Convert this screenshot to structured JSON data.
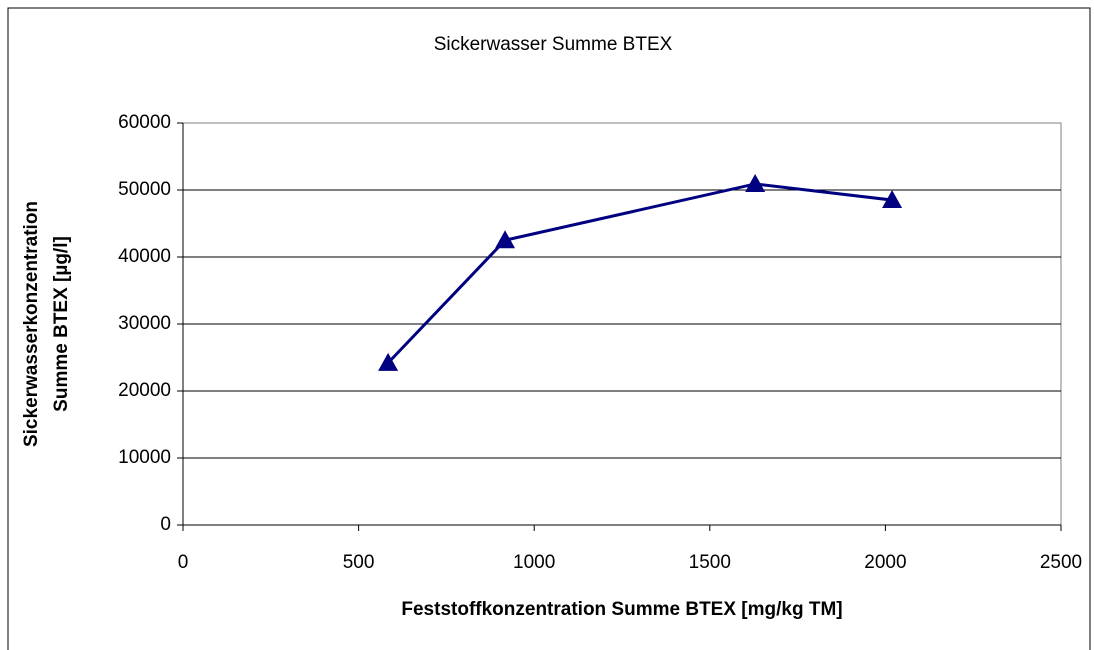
{
  "chart_data": {
    "type": "line",
    "title": "Sickerwasser Summe BTEX",
    "xlabel": "Feststoffkonzentration Summe BTEX [mg/kg TM]",
    "ylabel": [
      "Sickerwasserkonzentration",
      "Summe BTEX [µg/l]"
    ],
    "x": [
      584,
      917,
      1629,
      2019
    ],
    "values": [
      24200,
      42500,
      50900,
      48500
    ],
    "color": "#000080",
    "marker": "triangle",
    "xlim": [
      0,
      2500
    ],
    "xticks": [
      0,
      500,
      1000,
      1500,
      2000,
      2500
    ],
    "ylim": [
      0,
      60000
    ],
    "yticks": [
      0,
      10000,
      20000,
      30000,
      40000,
      50000,
      60000
    ],
    "grid": true
  }
}
